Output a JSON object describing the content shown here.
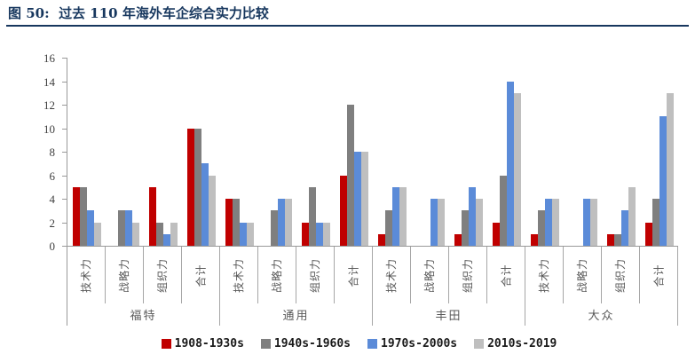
{
  "header": {
    "title": "图 50:  过去 110 年海外车企综合实力比较",
    "accent_color": "#17375E"
  },
  "chart_data": {
    "type": "bar",
    "title": "过去 110 年海外车企综合实力比较",
    "groups": [
      "福特",
      "通用",
      "丰田",
      "大众"
    ],
    "categories": [
      "技术力",
      "战略力",
      "组织力",
      "合计"
    ],
    "series": [
      {
        "name": "1908-1930s",
        "color": "#C00000",
        "values": [
          [
            5,
            0,
            5,
            10
          ],
          [
            4,
            0,
            2,
            6
          ],
          [
            1,
            0,
            1,
            2
          ],
          [
            1,
            0,
            1,
            2
          ]
        ]
      },
      {
        "name": "1940s-1960s",
        "color": "#7F7F7F",
        "values": [
          [
            5,
            3,
            2,
            10
          ],
          [
            4,
            3,
            5,
            12
          ],
          [
            3,
            0,
            3,
            6
          ],
          [
            3,
            0,
            1,
            4
          ]
        ]
      },
      {
        "name": "1970s-2000s",
        "color": "#5B8BD8",
        "values": [
          [
            3,
            3,
            1,
            7
          ],
          [
            2,
            4,
            2,
            8
          ],
          [
            5,
            4,
            5,
            14
          ],
          [
            4,
            4,
            3,
            11
          ]
        ]
      },
      {
        "name": "2010s-2019",
        "color": "#BFBFBF",
        "values": [
          [
            2,
            2,
            2,
            6
          ],
          [
            2,
            4,
            2,
            8
          ],
          [
            5,
            4,
            4,
            13
          ],
          [
            4,
            4,
            5,
            13
          ]
        ]
      }
    ],
    "ylim": [
      0,
      16
    ],
    "yticks": [
      16,
      14,
      12,
      10,
      8,
      6,
      4,
      2,
      0
    ],
    "xlabel": "",
    "ylabel": "",
    "grid": false,
    "legend_position": "bottom",
    "axis_color": "#999999",
    "label_color": "#595959"
  }
}
